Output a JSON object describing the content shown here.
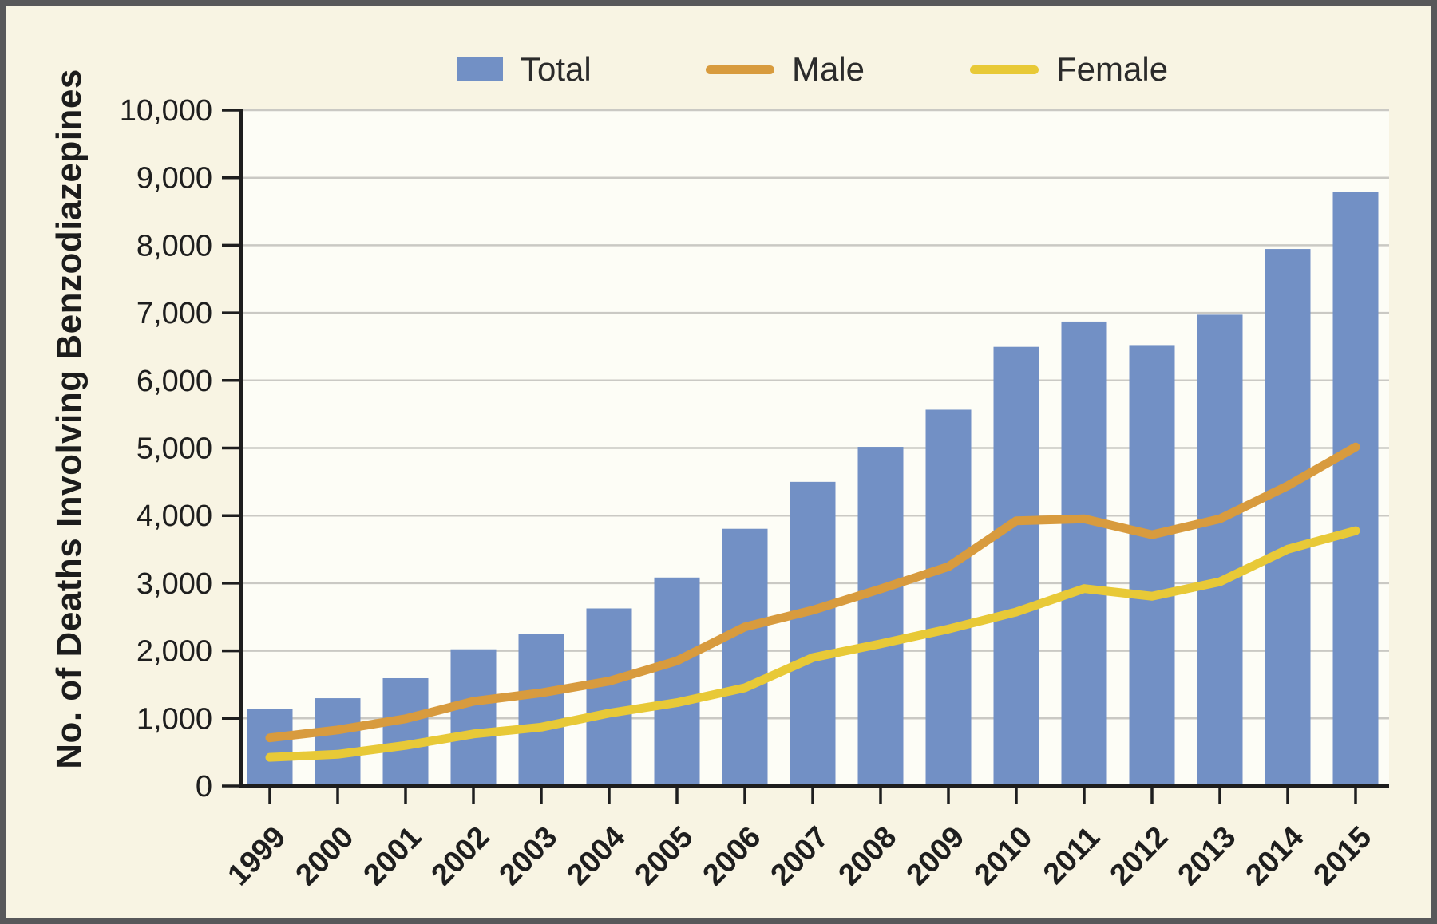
{
  "figure": {
    "y_axis_title": "No. of Deaths Involving Benzodiazepines"
  },
  "legend": {
    "items": [
      {
        "label": "Total",
        "swatch": "bar"
      },
      {
        "label": "Male",
        "swatch": "line"
      },
      {
        "label": "Female",
        "swatch": "line"
      }
    ]
  },
  "colors": {
    "background": "#f8f4e3",
    "plot_background": "#fdfdf6",
    "frame_border": "#58585a",
    "bar_blue": "#7290c5",
    "male_orange": "#d89b3e",
    "female_yellow": "#e8c937",
    "gridline": "#cac9c4",
    "axis_and_text": "#1e1e1e"
  },
  "chart_data": {
    "type": "combo",
    "title": "",
    "xlabel": "",
    "ylabel": "No. of Deaths Involving Benzodiazepines",
    "categories": [
      "1999",
      "2000",
      "2001",
      "2002",
      "2003",
      "2004",
      "2005",
      "2006",
      "2007",
      "2008",
      "2009",
      "2010",
      "2011",
      "2012",
      "2013",
      "2014",
      "2015"
    ],
    "series": [
      {
        "name": "Total",
        "type": "bar",
        "color": "#7290c5",
        "values": [
          1135,
          1298,
          1594,
          2022,
          2248,
          2627,
          3084,
          3805,
          4500,
          5017,
          5567,
          6497,
          6872,
          6524,
          6973,
          7945,
          8791
        ]
      },
      {
        "name": "Male",
        "type": "line",
        "color": "#d89b3e",
        "values": [
          712,
          829,
          994,
          1252,
          1378,
          1550,
          1851,
          2353,
          2601,
          2914,
          3245,
          3923,
          3952,
          3717,
          3952,
          4442,
          5015
        ]
      },
      {
        "name": "Female",
        "type": "line",
        "color": "#e8c937",
        "values": [
          423,
          469,
          600,
          770,
          870,
          1077,
          1233,
          1452,
          1899,
          2103,
          2322,
          2574,
          2920,
          2807,
          3021,
          3503,
          3776
        ]
      }
    ],
    "ylim": [
      0,
      10000
    ],
    "yticks": {
      "values": [
        0,
        1000,
        2000,
        3000,
        4000,
        5000,
        6000,
        7000,
        8000,
        9000,
        10000
      ],
      "labels": [
        "0",
        "1,000",
        "2,000",
        "3,000",
        "4,000",
        "5,000",
        "6,000",
        "7,000",
        "8,000",
        "9,000",
        "10,000"
      ]
    },
    "grid": true,
    "legend_position": "top"
  }
}
